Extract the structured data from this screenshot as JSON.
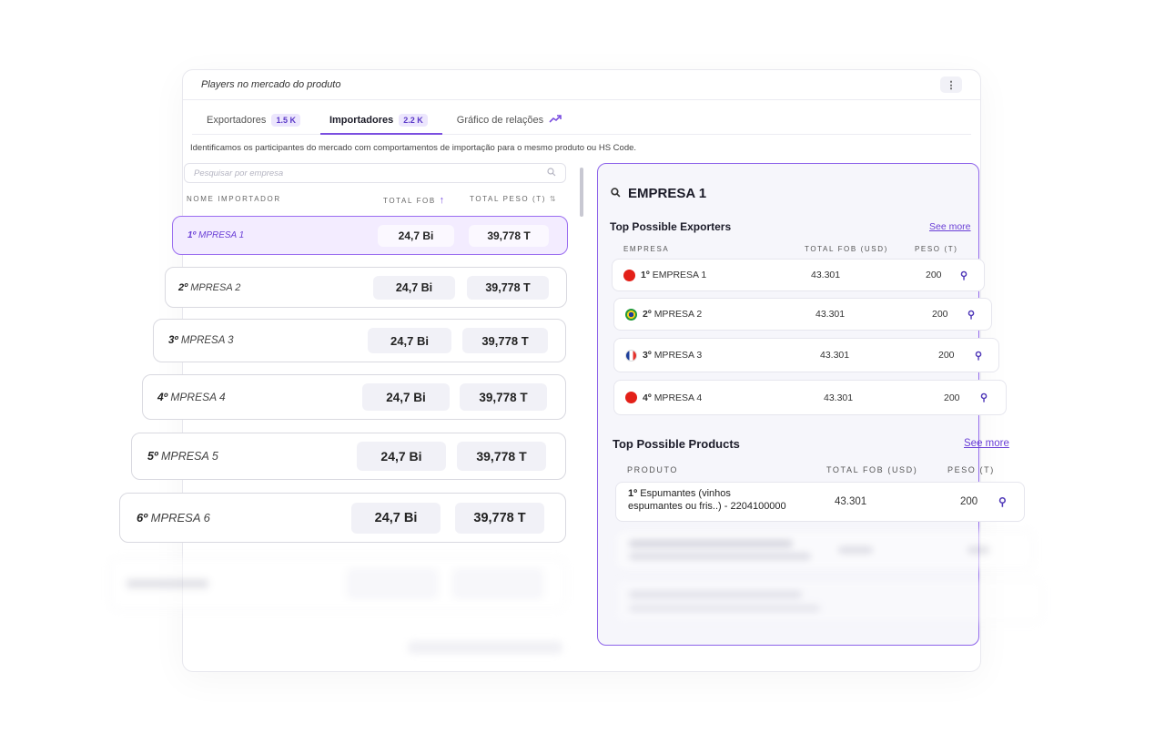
{
  "header": {
    "title": "Players no mercado do produto",
    "menu_icon": "⋮"
  },
  "tabs": [
    {
      "label": "Exportadores",
      "badge": "1.5 K"
    },
    {
      "label": "Importadores",
      "badge": "2.2 K"
    },
    {
      "label": "Gráfico de relações",
      "icon": "trend-icon"
    }
  ],
  "description": "Identificamos os participantes do mercado com comportamentos de importação para o mesmo produto ou HS Code.",
  "search": {
    "placeholder": "Pesquisar por empresa"
  },
  "columns": {
    "name": "NOME IMPORTADOR",
    "fob": "TOTAL FOB",
    "peso": "TOTAL PESO (T)"
  },
  "importers": [
    {
      "rank": "1º",
      "name": "MPRESA 1",
      "fob": "24,7 Bi",
      "peso": "39,778 T"
    },
    {
      "rank": "2º",
      "name": "MPRESA 2",
      "fob": "24,7 Bi",
      "peso": "39,778 T"
    },
    {
      "rank": "3º",
      "name": "MPRESA 3",
      "fob": "24,7 Bi",
      "peso": "39,778 T"
    },
    {
      "rank": "4º",
      "name": "MPRESA 4",
      "fob": "24,7 Bi",
      "peso": "39,778 T"
    },
    {
      "rank": "5º",
      "name": "MPRESA 5",
      "fob": "24,7 Bi",
      "peso": "39,778 T"
    },
    {
      "rank": "6º",
      "name": "MPRESA 6",
      "fob": "24,7 Bi",
      "peso": "39,778 T"
    }
  ],
  "detail": {
    "title": "EMPRESA 1",
    "exporters": {
      "title": "Top Possible Exporters",
      "see_more": "See more",
      "columns": {
        "empresa": "EMPRESA",
        "fob": "TOTAL FOB (USD)",
        "peso": "PESO (T)"
      },
      "rows": [
        {
          "rank": "1º",
          "name": "EMPRESA 1",
          "fob": "43.301",
          "peso": "200",
          "flag": "china"
        },
        {
          "rank": "2º",
          "name": "MPRESA 2",
          "fob": "43.301",
          "peso": "200",
          "flag": "brazil"
        },
        {
          "rank": "3º",
          "name": "MPRESA 3",
          "fob": "43.301",
          "peso": "200",
          "flag": "france"
        },
        {
          "rank": "4º",
          "name": "MPRESA 4",
          "fob": "43.301",
          "peso": "200",
          "flag": "china"
        }
      ]
    },
    "products": {
      "title": "Top Possible Products",
      "see_more": "See more",
      "columns": {
        "produto": "PRODUTO",
        "fob": "TOTAL FOB (USD)",
        "peso": "PESO (T)"
      },
      "rows": [
        {
          "rank": "1º",
          "name_line1": "Espumantes (vinhos",
          "name_line2": "espumantes ou fris..) - 2204100000",
          "fob": "43.301",
          "peso": "200"
        }
      ]
    }
  },
  "colors": {
    "accent": "#7b4fe0",
    "selected_bg": "#f3ecff"
  }
}
